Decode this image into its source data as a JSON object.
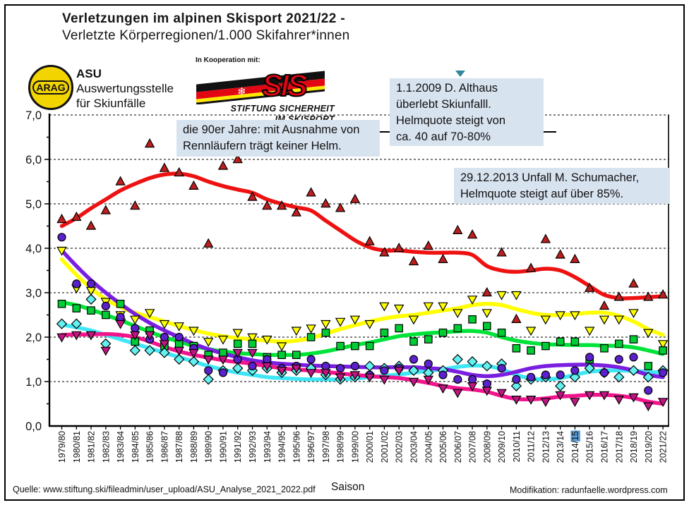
{
  "header": {
    "title_line1": "Verletzungen im alpinen Skisport 2021/22 -",
    "title_line2": "Verletzte Körperregionen/1.000 Skifahrer*innen"
  },
  "logos": {
    "arag_text": "ARAG",
    "asu_name": "ASU",
    "asu_line1": "Auswertungsstelle",
    "asu_line2": "für Skiunfälle",
    "koop_label": "In Kooperation mit:",
    "sis_text": "SIS",
    "sis_sub1": "STIFTUNG SICHERHEIT",
    "sis_sub2": "IM SKISPORT",
    "snowflake_icon": "❄"
  },
  "annotations": {
    "nineties": "die 90er Jahre: mit Ausnahme von\nRennläufern trägt keiner Helm.",
    "althaus": "1.1.2009  D. Althaus\nüberlebt Skiunfalll.\nHelmquote steigt von\nca. 40 auf 70-80%",
    "schumacher": "29.12.2013 Unfall M. Schumacher,\nHelmquote steigt auf über 85%."
  },
  "footer": {
    "source": "Quelle: www.stiftung.ski/fileadmin/user_upload/ASU_Analyse_2021_2022.pdf",
    "xaxis_title": "Saison",
    "modification": "Modifikation: radunfaelle.wordpress.com"
  },
  "chart_data": {
    "type": "scatter",
    "title": "Verletzte Körperregionen/1.000 Skifahrer*innen",
    "xlabel": "Saison",
    "ylabel": "",
    "ylim": [
      0,
      7
    ],
    "grid": "dashed horizontal at every 1.0",
    "y_tick_labels": [
      "0,0",
      "1,0",
      "2,0",
      "3,0",
      "4,0",
      "5,0",
      "6,0",
      "7,0"
    ],
    "categories": [
      "1979/80",
      "1980/81",
      "1981/82",
      "1982/83",
      "1983/84",
      "1984/85",
      "1985/86",
      "1986/87",
      "1987/88",
      "1988/89",
      "1989/90",
      "1990/91",
      "1991/92",
      "1992/93",
      "1993/94",
      "1994/95",
      "1995/96",
      "1996/97",
      "1997/98",
      "1998/99",
      "1999/00",
      "2000/01",
      "2001/02",
      "2002/03",
      "2003/04",
      "2004/05",
      "2005/06",
      "2006/07",
      "2007/08",
      "2008/09",
      "2009/10",
      "2010/11",
      "2011/12",
      "2012/13",
      "2013/14",
      "2014/15",
      "2015/16",
      "2016/17",
      "2017/18",
      "2018/19",
      "2019/20",
      "2021/22"
    ],
    "highlight": {
      "index": 35,
      "selected_text": "15",
      "color": "#5B9BD5"
    },
    "series": [
      {
        "name": "red-triangle-series",
        "marker": "triangle-up",
        "line_color": "#EE1111",
        "marker_color": "#BE1E1E",
        "values": [
          4.65,
          4.7,
          4.5,
          4.85,
          5.5,
          4.95,
          6.35,
          5.8,
          5.7,
          5.4,
          4.1,
          5.85,
          6.0,
          5.15,
          4.95,
          4.95,
          4.8,
          5.25,
          5.0,
          4.9,
          5.1,
          4.15,
          3.9,
          4.0,
          3.7,
          4.05,
          3.75,
          4.4,
          4.3,
          3.0,
          3.9,
          2.4,
          3.55,
          4.2,
          3.85,
          3.75,
          3.1,
          2.7,
          2.9,
          3.2,
          2.9,
          2.95
        ],
        "trend": [
          4.5,
          4.68,
          4.9,
          5.1,
          5.3,
          5.45,
          5.58,
          5.66,
          5.68,
          5.62,
          5.5,
          5.4,
          5.32,
          5.25,
          5.1,
          5.0,
          4.92,
          4.85,
          4.62,
          4.4,
          4.18,
          4.02,
          3.95,
          3.95,
          3.92,
          3.9,
          3.9,
          3.9,
          3.85,
          3.6,
          3.5,
          3.47,
          3.5,
          3.54,
          3.5,
          3.35,
          3.15,
          2.95,
          2.88,
          2.88,
          2.9,
          2.92
        ]
      },
      {
        "name": "yellow-triangle-down-series",
        "marker": "triangle-down",
        "line_color": "#FFFF00",
        "marker_color": "#FFFF00",
        "values": [
          3.95,
          3.1,
          3.05,
          2.8,
          2.5,
          2.4,
          2.55,
          2.3,
          2.25,
          2.15,
          1.9,
          1.95,
          2.1,
          2.0,
          1.95,
          1.8,
          2.15,
          2.2,
          2.3,
          2.35,
          2.4,
          2.3,
          2.7,
          2.65,
          2.4,
          2.7,
          2.7,
          2.55,
          2.85,
          2.55,
          2.95,
          2.95,
          2.15,
          2.4,
          2.5,
          2.5,
          2.15,
          2.4,
          2.4,
          2.55,
          2.1,
          1.85
        ],
        "trend": [
          3.75,
          3.4,
          3.1,
          2.85,
          2.68,
          2.55,
          2.45,
          2.35,
          2.25,
          2.16,
          2.08,
          2.02,
          1.98,
          1.95,
          1.92,
          1.9,
          1.92,
          1.98,
          2.08,
          2.18,
          2.27,
          2.35,
          2.42,
          2.47,
          2.5,
          2.55,
          2.6,
          2.65,
          2.72,
          2.75,
          2.72,
          2.63,
          2.55,
          2.5,
          2.5,
          2.52,
          2.55,
          2.55,
          2.48,
          2.35,
          2.18,
          2.05
        ]
      },
      {
        "name": "green-square-series",
        "marker": "square",
        "line_color": "#00E339",
        "marker_color": "#00CC33",
        "values": [
          2.75,
          2.65,
          2.6,
          2.5,
          2.75,
          1.9,
          2.15,
          1.8,
          1.85,
          1.8,
          1.6,
          1.65,
          1.85,
          1.85,
          1.55,
          1.6,
          1.6,
          2.0,
          2.1,
          1.8,
          1.8,
          1.8,
          2.1,
          2.2,
          1.9,
          1.95,
          2.1,
          2.2,
          2.4,
          2.25,
          2.1,
          1.75,
          1.7,
          1.8,
          1.9,
          1.9,
          1.5,
          1.75,
          1.85,
          1.95,
          1.35,
          1.7
        ],
        "trend": [
          2.78,
          2.72,
          2.62,
          2.5,
          2.38,
          2.25,
          2.12,
          2.0,
          1.9,
          1.8,
          1.73,
          1.68,
          1.64,
          1.62,
          1.6,
          1.6,
          1.6,
          1.63,
          1.68,
          1.75,
          1.82,
          1.88,
          1.95,
          2.02,
          2.06,
          2.09,
          2.11,
          2.13,
          2.14,
          2.1,
          2.0,
          1.92,
          1.87,
          1.84,
          1.83,
          1.82,
          1.82,
          1.81,
          1.8,
          1.77,
          1.7,
          1.62
        ]
      },
      {
        "name": "cyan-diamond-series",
        "marker": "diamond",
        "line_color": "#3FE6F5",
        "marker_color": "#63F0F0",
        "values": [
          2.3,
          2.3,
          2.85,
          1.85,
          2.4,
          1.7,
          1.7,
          1.65,
          1.5,
          1.45,
          1.05,
          1.25,
          1.3,
          1.25,
          1.3,
          1.2,
          1.25,
          1.3,
          1.15,
          1.05,
          1.1,
          1.35,
          1.3,
          1.35,
          1.25,
          1.2,
          1.25,
          1.5,
          1.45,
          1.35,
          1.4,
          0.9,
          1.05,
          1.1,
          0.9,
          1.1,
          1.3,
          1.2,
          1.1,
          1.25,
          1.1,
          1.25
        ],
        "trend": [
          2.28,
          2.22,
          2.15,
          2.05,
          1.95,
          1.85,
          1.75,
          1.65,
          1.55,
          1.45,
          1.35,
          1.27,
          1.2,
          1.15,
          1.1,
          1.08,
          1.06,
          1.05,
          1.05,
          1.05,
          1.07,
          1.1,
          1.13,
          1.16,
          1.2,
          1.24,
          1.28,
          1.33,
          1.36,
          1.35,
          1.28,
          1.15,
          1.07,
          1.05,
          1.08,
          1.15,
          1.22,
          1.25,
          1.25,
          1.24,
          1.22,
          1.2
        ]
      },
      {
        "name": "violet-circle-series",
        "marker": "circle",
        "line_color": "#7A1FE0",
        "marker_color": "#5A21CC",
        "values": [
          4.25,
          3.2,
          3.2,
          2.7,
          2.45,
          2.2,
          1.95,
          2.0,
          2.0,
          1.75,
          1.25,
          1.2,
          1.5,
          1.35,
          1.5,
          1.3,
          1.35,
          1.5,
          1.35,
          1.3,
          1.35,
          1.15,
          1.25,
          1.3,
          1.5,
          1.4,
          1.15,
          1.05,
          1.05,
          0.95,
          1.3,
          1.05,
          1.1,
          1.15,
          1.15,
          1.25,
          1.55,
          1.2,
          1.5,
          1.55,
          0.8,
          1.2
        ],
        "trend": [
          3.95,
          3.6,
          3.28,
          3.0,
          2.75,
          2.52,
          2.32,
          2.15,
          2.0,
          1.85,
          1.73,
          1.63,
          1.55,
          1.48,
          1.43,
          1.4,
          1.38,
          1.36,
          1.35,
          1.34,
          1.33,
          1.32,
          1.32,
          1.32,
          1.32,
          1.3,
          1.28,
          1.22,
          1.15,
          1.12,
          1.15,
          1.22,
          1.3,
          1.35,
          1.37,
          1.38,
          1.38,
          1.36,
          1.32,
          1.25,
          1.15,
          1.1
        ]
      },
      {
        "name": "magenta-triangle-down-series",
        "marker": "triangle-down",
        "line_color": "#F2148C",
        "marker_color": "#C21585",
        "values": [
          2.0,
          2.05,
          2.05,
          1.7,
          2.3,
          2.05,
          2.05,
          1.85,
          1.7,
          1.65,
          1.5,
          1.5,
          1.65,
          1.65,
          1.35,
          1.25,
          1.3,
          1.2,
          1.2,
          1.1,
          1.15,
          1.1,
          1.05,
          1.25,
          1.0,
          1.05,
          0.85,
          0.75,
          0.9,
          0.8,
          0.75,
          0.6,
          0.6,
          0.55,
          0.7,
          0.55,
          0.7,
          0.7,
          0.6,
          0.65,
          0.45,
          0.55
        ],
        "trend": [
          2.05,
          2.06,
          2.06,
          2.07,
          2.05,
          2.0,
          1.9,
          1.78,
          1.68,
          1.6,
          1.54,
          1.48,
          1.44,
          1.4,
          1.35,
          1.3,
          1.27,
          1.25,
          1.22,
          1.18,
          1.15,
          1.12,
          1.1,
          1.08,
          1.03,
          0.97,
          0.9,
          0.85,
          0.82,
          0.77,
          0.68,
          0.61,
          0.6,
          0.62,
          0.66,
          0.68,
          0.7,
          0.7,
          0.68,
          0.63,
          0.55,
          0.5
        ]
      }
    ]
  }
}
